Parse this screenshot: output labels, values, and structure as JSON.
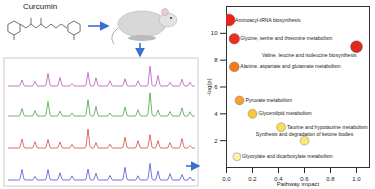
{
  "compound": {
    "label": "Curcumin"
  },
  "chart_data": {
    "type": "scatter",
    "x_label": "Pathway impact",
    "y_label": "-log(p)",
    "xlim": [
      0,
      1.1
    ],
    "xticks": [
      {
        "value": 0,
        "label": "0.0"
      },
      0.2,
      0.4,
      0.6,
      0.8,
      {
        "value": 1,
        "label": "1.0"
      }
    ],
    "ylim": [
      0,
      12
    ],
    "yticks": [
      2,
      4,
      6,
      8,
      10
    ],
    "points": [
      {
        "name": "Aminoacyl-tRNA biosynthesis",
        "x": 0.02,
        "y": 11,
        "size": 9
      },
      {
        "name": "Glycine, serine and threonine metabolism",
        "x": 0.06,
        "y": 9.6,
        "size": 7
      },
      {
        "name": "Valine, leucine and isoleucine biosynthesis",
        "x": 1.0,
        "y": 9,
        "size": 9
      },
      {
        "name": "Alanine, aspartate and glutamate metabolism",
        "x": 0.06,
        "y": 7.5,
        "size": 6
      },
      {
        "name": "Pyruvate metabolism",
        "x": 0.1,
        "y": 5,
        "size": 5
      },
      {
        "name": "Glycerolipid metabolism",
        "x": 0.2,
        "y": 4,
        "size": 5
      },
      {
        "name": "Taurine and hypotaurine metabolism",
        "x": 0.42,
        "y": 3,
        "size": 5
      },
      {
        "name": "Synthesis and degradation of ketone bodies",
        "x": 0.6,
        "y": 2,
        "size": 5
      },
      {
        "name": "Glyoxylate and dicarboxylate metabolism",
        "x": 0.08,
        "y": 0.8,
        "size": 4
      }
    ],
    "colors": [
      "#e8241c",
      "#e8301c",
      "#e0281c",
      "#f07a20",
      "#f5a030",
      "#f5c840",
      "#f8dc60",
      "#fbe878",
      "#fff2a8"
    ],
    "tick_labels": true
  }
}
